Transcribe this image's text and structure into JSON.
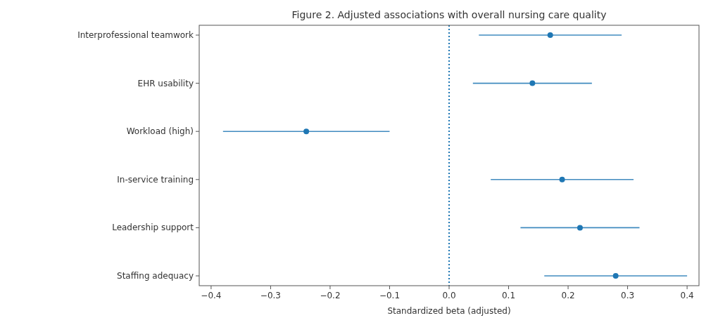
{
  "chart_data": {
    "type": "scatter",
    "orientation": "horizontal",
    "title": "Figure 2. Adjusted associations with overall nursing care quality",
    "xlabel": "Standardized beta (adjusted)",
    "categories": [
      "Interprofessional teamwork",
      "EHR usability",
      "Workload (high)",
      "In-service training",
      "Leadership support",
      "Staffing adequacy"
    ],
    "series": [
      {
        "color": "#1f77b4",
        "values": [
          0.17,
          0.14,
          -0.24,
          0.19,
          0.22,
          0.28
        ],
        "errors": [
          [
            0.05,
            0.29
          ],
          [
            0.04,
            0.24
          ],
          [
            -0.38,
            -0.1
          ],
          [
            0.07,
            0.31
          ],
          [
            0.12,
            0.32
          ],
          [
            0.16,
            0.4
          ]
        ]
      }
    ],
    "xlim": [
      -0.42,
      0.42
    ],
    "xticks": [
      -0.4,
      -0.3,
      -0.2,
      -0.1,
      {
        "value": 0,
        "label": "0.0"
      },
      0.1,
      0.2,
      0.3,
      0.4
    ],
    "ref_lines": [
      {
        "axis": "x",
        "value": 0,
        "color": "#1f77b4",
        "line_style": "dotted"
      }
    ],
    "marker": "circle"
  }
}
